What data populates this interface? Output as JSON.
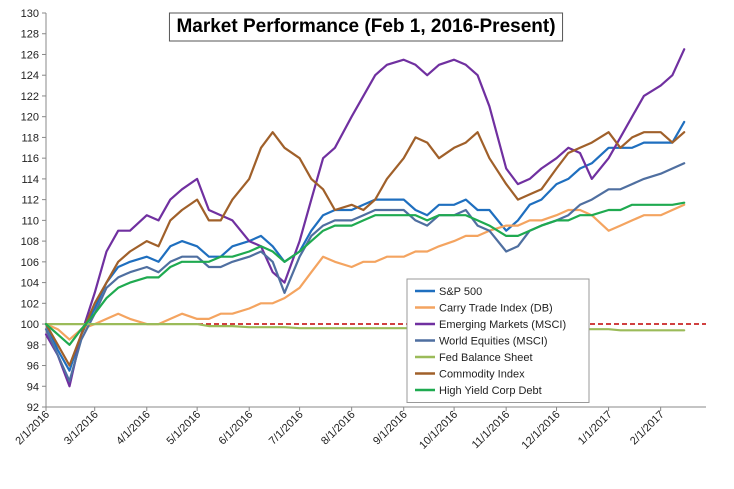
{
  "chart_data": {
    "type": "line",
    "title": "Market Performance (Feb 1, 2016-Present)",
    "xlabel": "",
    "ylabel": "",
    "ylim": [
      92,
      130
    ],
    "yticks": [
      92,
      94,
      96,
      98,
      100,
      102,
      104,
      106,
      108,
      110,
      112,
      114,
      116,
      118,
      120,
      122,
      124,
      126,
      128,
      130
    ],
    "xlim": [
      "2016-02-01",
      "2017-02-28"
    ],
    "xticks": [
      "2/1/2016",
      "3/1/2016",
      "4/1/2016",
      "5/1/2016",
      "6/1/2016",
      "7/1/2016",
      "8/1/2016",
      "9/1/2016",
      "10/1/2016",
      "11/1/2016",
      "12/1/2016",
      "1/1/2017",
      "2/1/2017"
    ],
    "grid": false,
    "legend_position": "bottom-center",
    "reference_line": {
      "y": 100,
      "style": "dashed",
      "color": "#c00000"
    },
    "x": [
      "2016-02-01",
      "2016-02-08",
      "2016-02-15",
      "2016-02-22",
      "2016-03-01",
      "2016-03-08",
      "2016-03-15",
      "2016-03-22",
      "2016-04-01",
      "2016-04-08",
      "2016-04-15",
      "2016-04-22",
      "2016-05-01",
      "2016-05-08",
      "2016-05-15",
      "2016-05-22",
      "2016-06-01",
      "2016-06-08",
      "2016-06-15",
      "2016-06-22",
      "2016-07-01",
      "2016-07-08",
      "2016-07-15",
      "2016-07-22",
      "2016-08-01",
      "2016-08-08",
      "2016-08-15",
      "2016-08-22",
      "2016-09-01",
      "2016-09-08",
      "2016-09-15",
      "2016-09-22",
      "2016-10-01",
      "2016-10-08",
      "2016-10-15",
      "2016-10-22",
      "2016-11-01",
      "2016-11-08",
      "2016-11-15",
      "2016-11-22",
      "2016-12-01",
      "2016-12-08",
      "2016-12-15",
      "2016-12-22",
      "2017-01-01",
      "2017-01-08",
      "2017-01-15",
      "2017-01-22",
      "2017-02-01",
      "2017-02-08",
      "2017-02-15"
    ],
    "series": [
      {
        "name": "S&P 500",
        "color": "#1f6fbf",
        "values": [
          100,
          97.5,
          95.5,
          99,
          101.5,
          104,
          105.5,
          106,
          106.5,
          106,
          107.5,
          108,
          107.5,
          106.5,
          106.5,
          107.5,
          108,
          108.5,
          107.5,
          106,
          107,
          109,
          110.5,
          111,
          111,
          111.5,
          112,
          112,
          112,
          111,
          110.5,
          111.5,
          111.5,
          112,
          111,
          111,
          109,
          110,
          111.5,
          112,
          113.5,
          114,
          115,
          115.5,
          117,
          117,
          117,
          117.5,
          117.5,
          117.5,
          119.5
        ]
      },
      {
        "name": "Carry Trade Index (DB)",
        "color": "#f4a460",
        "values": [
          100,
          99.5,
          98.5,
          99.5,
          100,
          100.5,
          101,
          100.5,
          100,
          100,
          100.5,
          101,
          100.5,
          100.5,
          101,
          101,
          101.5,
          102,
          102,
          102.5,
          103.5,
          105,
          106.5,
          106,
          105.5,
          106,
          106,
          106.5,
          106.5,
          107,
          107,
          107.5,
          108,
          108.5,
          108.5,
          109,
          109.5,
          109.5,
          110,
          110,
          110.5,
          111,
          111,
          110.5,
          109,
          109.5,
          110,
          110.5,
          110.5,
          111,
          111.5
        ]
      },
      {
        "name": "Emerging Markets (MSCI)",
        "color": "#7030a0",
        "values": [
          99,
          97,
          94,
          99,
          103,
          107,
          109,
          109,
          110.5,
          110,
          112,
          113,
          114,
          111,
          110.5,
          110,
          108,
          107.5,
          105,
          104,
          108,
          112,
          116,
          117,
          120,
          122,
          124,
          125,
          125.5,
          125,
          124,
          125,
          125.5,
          125,
          124,
          121,
          115,
          113.5,
          114,
          115,
          116,
          117,
          116.5,
          114,
          116,
          118,
          120,
          122,
          123,
          124,
          126.5
        ]
      },
      {
        "name": "World Equities (MSCI)",
        "color": "#4f6fa0",
        "values": [
          99.5,
          97,
          94.5,
          98.5,
          101,
          103.5,
          104.5,
          105,
          105.5,
          105,
          106,
          106.5,
          106.5,
          105.5,
          105.5,
          106,
          106.5,
          107,
          106,
          103,
          106.5,
          108.5,
          109.5,
          110,
          110,
          110.5,
          111,
          111,
          111,
          110,
          109.5,
          110.5,
          110.5,
          111,
          109.5,
          109,
          107,
          107.5,
          109,
          109.5,
          110,
          110.5,
          111.5,
          112,
          113,
          113,
          113.5,
          114,
          114.5,
          115,
          115.5
        ]
      },
      {
        "name": "Fed Balance Sheet",
        "color": "#9bbb59",
        "values": [
          100,
          100,
          100,
          100,
          100,
          100,
          100,
          100,
          100,
          100,
          100,
          100,
          100,
          99.8,
          99.8,
          99.8,
          99.7,
          99.7,
          99.7,
          99.7,
          99.6,
          99.6,
          99.6,
          99.6,
          99.6,
          99.6,
          99.6,
          99.6,
          99.6,
          99.6,
          99.6,
          99.6,
          99.6,
          99.6,
          99.5,
          99.5,
          99.5,
          99.5,
          99.5,
          99.5,
          99.5,
          99.5,
          99.5,
          99.5,
          99.5,
          99.4,
          99.4,
          99.4,
          99.4,
          99.4,
          99.4
        ]
      },
      {
        "name": "Commodity Index",
        "color": "#a0602a",
        "values": [
          100,
          98,
          96,
          99,
          102,
          104,
          106,
          107,
          108,
          107.5,
          110,
          111,
          112,
          110,
          110,
          112,
          114,
          117,
          118.5,
          117,
          116,
          114,
          113,
          111,
          111.5,
          111,
          112,
          114,
          116,
          118,
          117.5,
          116,
          117,
          117.5,
          118.5,
          116,
          113.5,
          112,
          112.5,
          113,
          115,
          116.5,
          117,
          117.5,
          118.5,
          117,
          118,
          118.5,
          118.5,
          117.5,
          118.5
        ]
      },
      {
        "name": "High Yield Corp Debt",
        "color": "#1faa50",
        "values": [
          100,
          99,
          98,
          99.5,
          101,
          102.5,
          103.5,
          104,
          104.5,
          104.5,
          105.5,
          106,
          106,
          106,
          106.5,
          106.5,
          107,
          107.5,
          107,
          106,
          107,
          108,
          109,
          109.5,
          109.5,
          110,
          110.5,
          110.5,
          110.5,
          110.5,
          110,
          110.5,
          110.5,
          110.5,
          110,
          109.5,
          108.5,
          108.5,
          109,
          109.5,
          110,
          110,
          110.5,
          110.5,
          111,
          111,
          111.5,
          111.5,
          111.5,
          111.5,
          111.7
        ]
      }
    ]
  }
}
